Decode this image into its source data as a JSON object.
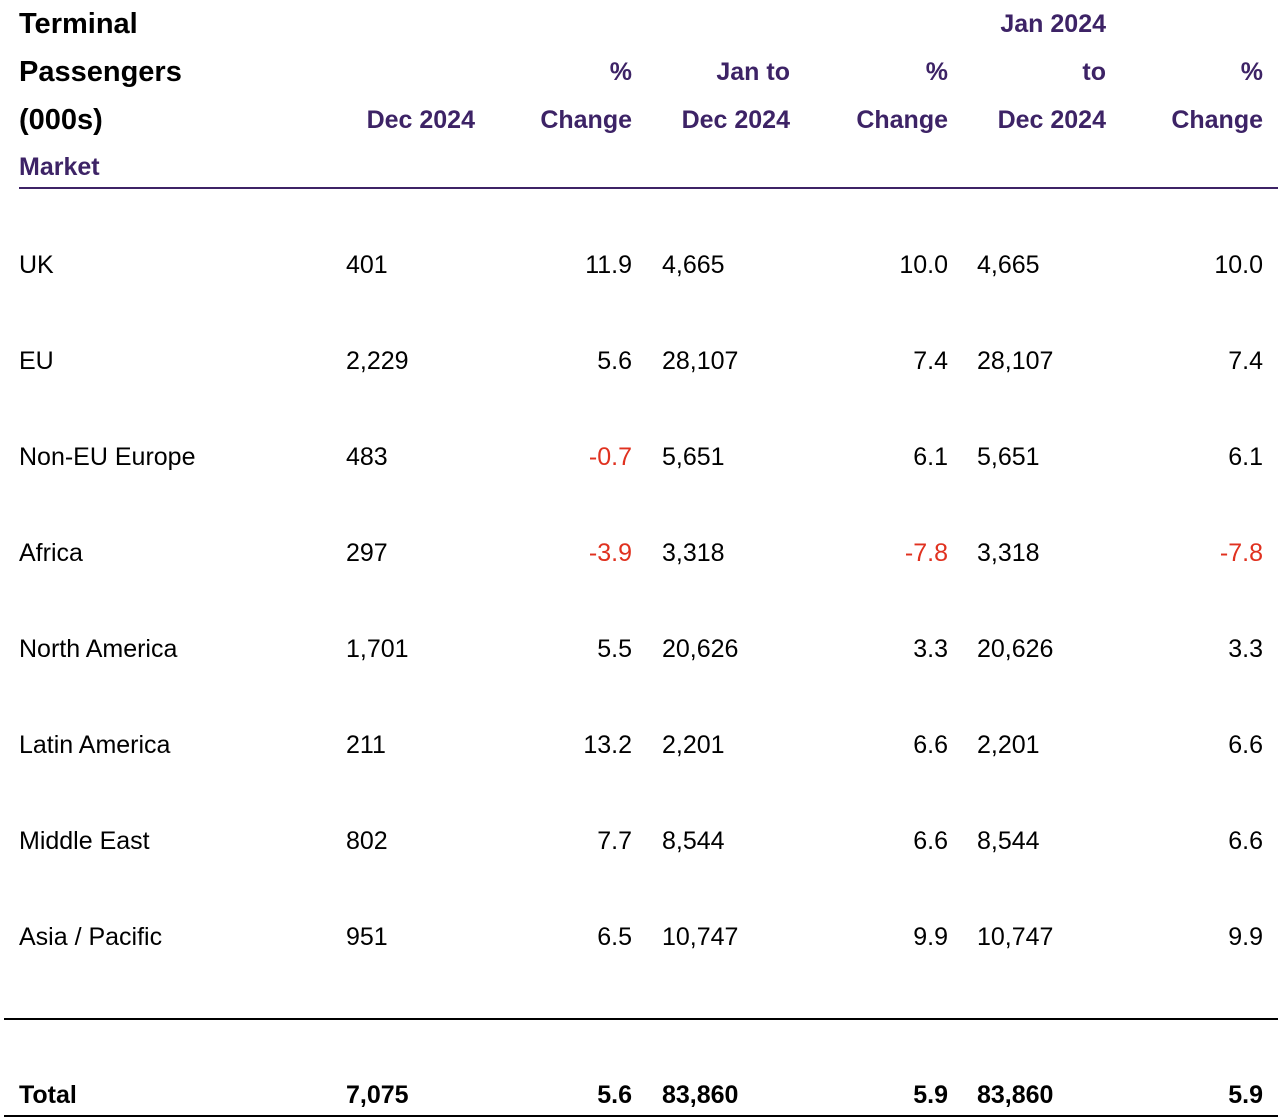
{
  "table": {
    "title_lines": [
      "Terminal",
      "Passengers",
      "(000s)"
    ],
    "market_label": "Market",
    "headers": {
      "dec": [
        "Dec 2024"
      ],
      "pct1": [
        "%",
        "Change"
      ],
      "jan": [
        "Jan to",
        "Dec 2024"
      ],
      "pct2": [
        "%",
        "Change"
      ],
      "jan2": [
        "Jan 2024",
        "to",
        "Dec 2024"
      ],
      "pct3": [
        "%",
        "Change"
      ]
    },
    "rows": [
      {
        "market": "UK",
        "dec": "401",
        "pct1": "11.9",
        "jan": "4,665",
        "pct2": "10.0",
        "jan2": "4,665",
        "pct3": "10.0"
      },
      {
        "market": "EU",
        "dec": "2,229",
        "pct1": "5.6",
        "jan": "28,107",
        "pct2": "7.4",
        "jan2": "28,107",
        "pct3": "7.4"
      },
      {
        "market": "Non-EU Europe",
        "dec": "483",
        "pct1": "-0.7",
        "jan": "5,651",
        "pct2": "6.1",
        "jan2": "5,651",
        "pct3": "6.1"
      },
      {
        "market": "Africa",
        "dec": "297",
        "pct1": "-3.9",
        "jan": "3,318",
        "pct2": "-7.8",
        "jan2": "3,318",
        "pct3": "-7.8"
      },
      {
        "market": "North America",
        "dec": "1,701",
        "pct1": "5.5",
        "jan": "20,626",
        "pct2": "3.3",
        "jan2": "20,626",
        "pct3": "3.3"
      },
      {
        "market": "Latin America",
        "dec": "211",
        "pct1": "13.2",
        "jan": "2,201",
        "pct2": "6.6",
        "jan2": "2,201",
        "pct3": "6.6"
      },
      {
        "market": "Middle East",
        "dec": "802",
        "pct1": "7.7",
        "jan": "8,544",
        "pct2": "6.6",
        "jan2": "8,544",
        "pct3": "6.6"
      },
      {
        "market": "Asia / Pacific",
        "dec": "951",
        "pct1": "6.5",
        "jan": "10,747",
        "pct2": "9.9",
        "jan2": "10,747",
        "pct3": "9.9"
      }
    ],
    "total": {
      "market": "Total",
      "dec": "7,075",
      "pct1": "5.6",
      "jan": "83,860",
      "pct2": "5.9",
      "jan2": "83,860",
      "pct3": "5.9"
    },
    "colors": {
      "header": "#3d2366",
      "negative": "#e0311f",
      "text": "#000000"
    }
  }
}
